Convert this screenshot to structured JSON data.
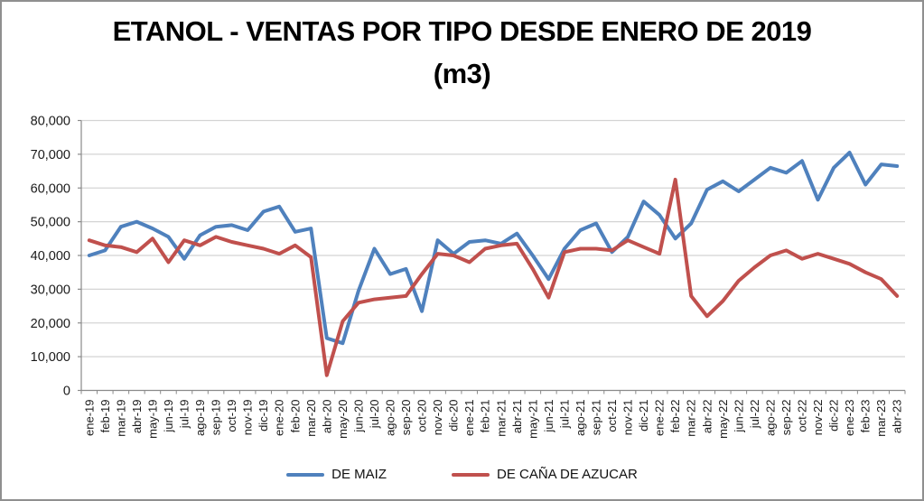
{
  "title": {
    "line1": "ETANOL - VENTAS POR TIPO DESDE ENERO DE 2019",
    "line2": "(m3)"
  },
  "legend": {
    "items": [
      {
        "label": "DE MAIZ",
        "color": "#4F81BD"
      },
      {
        "label": "DE CAÑA DE AZUCAR",
        "color": "#C0504D"
      }
    ]
  },
  "chart_data": {
    "type": "line",
    "title": "ETANOL - VENTAS POR TIPO DESDE ENERO DE 2019 (m3)",
    "xlabel": "",
    "ylabel": "",
    "ylim": [
      0,
      80000
    ],
    "y_tick_step": 10000,
    "y_tick_labels": [
      "0",
      "10,000",
      "20,000",
      "30,000",
      "40,000",
      "50,000",
      "60,000",
      "70,000",
      "80,000"
    ],
    "grid": true,
    "legend_position": "bottom",
    "categories": [
      "ene-19",
      "feb-19",
      "mar-19",
      "abr-19",
      "may-19",
      "jun-19",
      "jul-19",
      "ago-19",
      "sep-19",
      "oct-19",
      "nov-19",
      "dic-19",
      "ene-20",
      "feb-20",
      "mar-20",
      "abr-20",
      "may-20",
      "jun-20",
      "jul-20",
      "ago-20",
      "sep-20",
      "oct-20",
      "nov-20",
      "dic-20",
      "ene-21",
      "feb-21",
      "mar-21",
      "abr-21",
      "may-21",
      "jun-21",
      "jul-21",
      "ago-21",
      "sep-21",
      "oct-21",
      "nov-21",
      "dic-21",
      "ene-22",
      "feb-22",
      "mar-22",
      "abr-22",
      "may-22",
      "jun-22",
      "jul-22",
      "ago-22",
      "sep-22",
      "oct-22",
      "nov-22",
      "dic-22",
      "ene-23",
      "feb-23",
      "mar-23",
      "abr-23"
    ],
    "series": [
      {
        "name": "DE MAIZ",
        "color": "#4F81BD",
        "values": [
          40000,
          41500,
          48500,
          50000,
          48000,
          45500,
          39000,
          46000,
          48500,
          49000,
          47500,
          53000,
          54500,
          47000,
          48000,
          15500,
          14000,
          29500,
          42000,
          34500,
          36000,
          23500,
          44500,
          40500,
          44000,
          44500,
          43500,
          46500,
          40000,
          33000,
          42000,
          47500,
          49500,
          41000,
          45500,
          56000,
          52000,
          45000,
          49500,
          59500,
          62000,
          59000,
          62500,
          66000,
          64500,
          68000,
          56500,
          66000,
          70500,
          61000,
          67000,
          66500
        ]
      },
      {
        "name": "DE CAÑA DE AZUCAR",
        "color": "#C0504D",
        "values": [
          44500,
          43000,
          42500,
          41000,
          45000,
          38000,
          44500,
          43000,
          45500,
          44000,
          43000,
          42000,
          40500,
          43000,
          39500,
          4500,
          20500,
          26000,
          27000,
          27500,
          28000,
          34500,
          40500,
          40000,
          38000,
          42000,
          43000,
          43500,
          36000,
          27500,
          41000,
          42000,
          42000,
          41500,
          44500,
          42500,
          40500,
          62500,
          28000,
          22000,
          26500,
          32500,
          36500,
          40000,
          41500,
          39000,
          40500,
          39000,
          37500,
          35000,
          33000,
          28000
        ]
      }
    ]
  }
}
